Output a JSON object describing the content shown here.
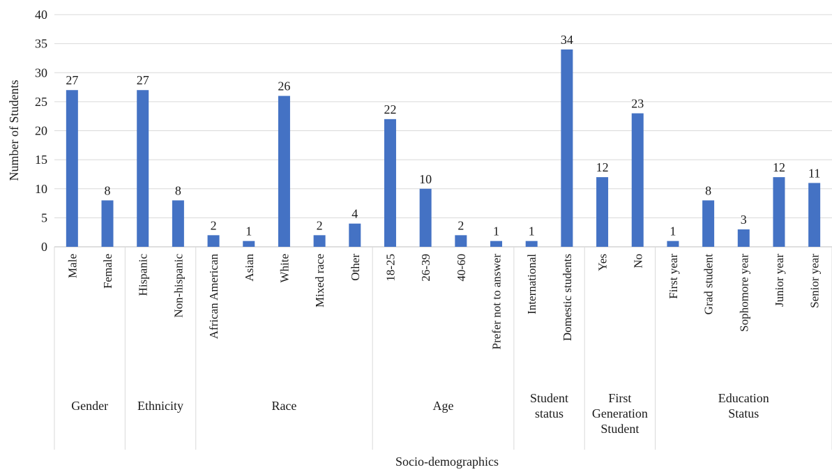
{
  "chart_data": {
    "type": "bar",
    "title": "",
    "xlabel": "Socio-demographics",
    "ylabel": "Number of Students",
    "ylim": [
      0,
      40
    ],
    "yticks": [
      0,
      5,
      10,
      15,
      20,
      25,
      30,
      35,
      40
    ],
    "grid": true,
    "legend": "none",
    "bar_color": "#4472C4",
    "groups": [
      {
        "name": "Gender",
        "categories": [
          "Male",
          "Female"
        ],
        "values": [
          27,
          8
        ]
      },
      {
        "name": "Ethnicity",
        "categories": [
          "Hispanic",
          "Non-hispanic"
        ],
        "values": [
          27,
          8
        ]
      },
      {
        "name": "Race",
        "categories": [
          "African American",
          "Asian",
          "White",
          "Mixed race",
          "Other"
        ],
        "values": [
          2,
          1,
          26,
          2,
          4
        ]
      },
      {
        "name": "Age",
        "categories": [
          "18-25",
          "26-39",
          "40-60",
          "Prefer not to answer"
        ],
        "values": [
          22,
          10,
          2,
          1
        ]
      },
      {
        "name": "Student status",
        "categories": [
          "International",
          "Domestic students"
        ],
        "values": [
          1,
          34
        ]
      },
      {
        "name": "First Generation Student",
        "categories": [
          "Yes",
          "No"
        ],
        "values": [
          12,
          23
        ]
      },
      {
        "name": "Education Status",
        "categories": [
          "First year",
          "Grad student",
          "Sophomore year",
          "Junior year",
          "Senior year"
        ],
        "values": [
          1,
          8,
          3,
          12,
          11
        ]
      }
    ]
  }
}
